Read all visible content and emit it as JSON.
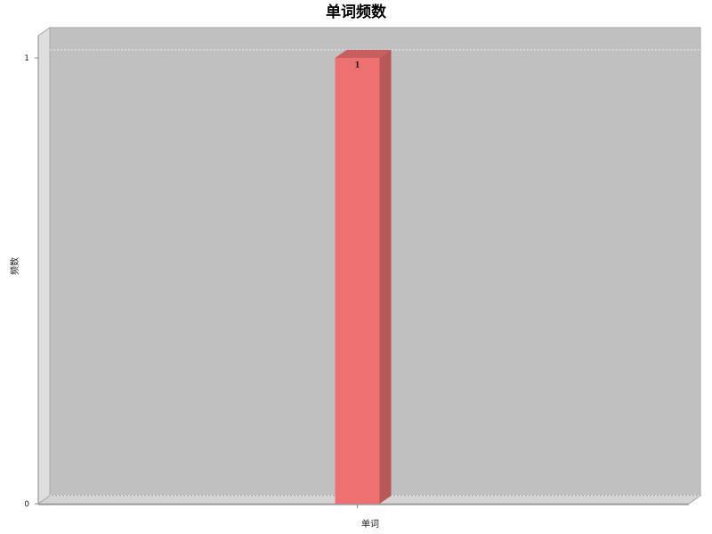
{
  "chart_data": {
    "type": "bar",
    "style": "3d",
    "title": "单词频数",
    "xlabel": "单词",
    "ylabel": "频数",
    "categories": [
      ""
    ],
    "values": [
      1
    ],
    "data_labels": [
      "1"
    ],
    "ylim": [
      0,
      1
    ],
    "yticks": [
      0,
      1
    ],
    "grid": true,
    "legend": "none",
    "colors": {
      "plot_background": "#c0c0c0",
      "wall_side": "#dedede",
      "floor": "#d4d4d4",
      "bar_front": "#ee7070",
      "bar_side": "#b85858",
      "bar_top": "#c85f5f",
      "gridline": "#eeeeee"
    }
  }
}
